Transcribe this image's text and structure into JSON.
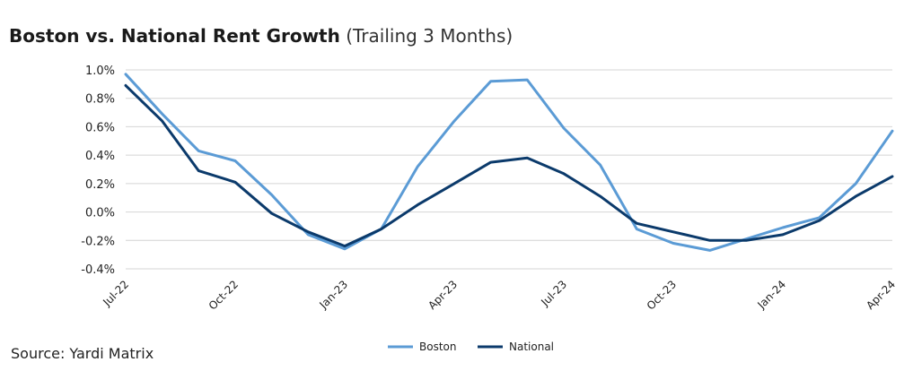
{
  "title": {
    "main": "Boston vs. National Rent Growth",
    "sub": "(Trailing 3 Months)"
  },
  "source": "Source: Yardi Matrix",
  "colors": {
    "boston": "#5b9bd5",
    "national": "#0b3a6b",
    "grid": "#d4d4d4"
  },
  "chart_data": {
    "type": "line",
    "title": "Boston vs. National Rent Growth (Trailing 3 Months)",
    "x": [
      "Jul-22",
      "Aug-22",
      "Sep-22",
      "Oct-22",
      "Nov-22",
      "Dec-22",
      "Jan-23",
      "Feb-23",
      "Mar-23",
      "Apr-23",
      "May-23",
      "Jun-23",
      "Jul-23",
      "Aug-23",
      "Sep-23",
      "Oct-23",
      "Nov-23",
      "Dec-23",
      "Jan-24",
      "Feb-24",
      "Mar-24",
      "Apr-24"
    ],
    "x_tick_labels": [
      "Jul-22",
      "Oct-22",
      "Jan-23",
      "Apr-23",
      "Jul-23",
      "Oct-23",
      "Jan-24",
      "Apr-24"
    ],
    "y_tick_labels": [
      "1.0%",
      "0.8%",
      "0.6%",
      "0.4%",
      "0.2%",
      "0.0%",
      "-0.2%",
      "-0.4%"
    ],
    "ylim": [
      -0.4,
      1.0
    ],
    "y_unit": "%",
    "grid": true,
    "legend_position": "bottom-center",
    "series": [
      {
        "name": "Boston",
        "values": [
          0.97,
          0.69,
          0.43,
          0.36,
          0.12,
          -0.16,
          -0.26,
          -0.12,
          0.32,
          0.64,
          0.92,
          0.93,
          0.59,
          0.33,
          -0.12,
          -0.22,
          -0.27,
          -0.19,
          -0.11,
          -0.04,
          0.2,
          0.57
        ]
      },
      {
        "name": "National",
        "values": [
          0.89,
          0.64,
          0.29,
          0.21,
          -0.01,
          -0.14,
          -0.24,
          -0.12,
          0.05,
          0.2,
          0.35,
          0.38,
          0.27,
          0.11,
          -0.08,
          -0.14,
          -0.2,
          -0.2,
          -0.16,
          -0.06,
          0.11,
          0.25
        ]
      }
    ]
  }
}
